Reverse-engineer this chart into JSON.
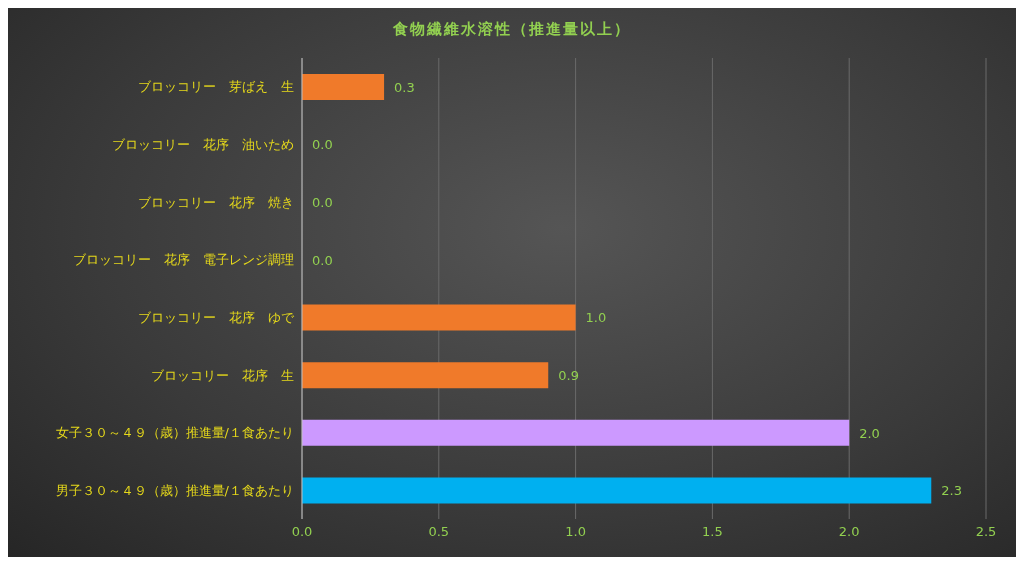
{
  "chart_data": {
    "type": "bar",
    "orientation": "horizontal",
    "title": "食物繊維水溶性（推進量以上）",
    "categories": [
      "ブロッコリー　芽ばえ　生",
      "ブロッコリー　花序　油いため",
      "ブロッコリー　花序　焼き",
      "ブロッコリー　花序　電子レンジ調理",
      "ブロッコリー　花序　ゆで",
      "ブロッコリー　花序　生",
      "女子３０～４９（歳）推進量/１食あたり",
      "男子３０～４９（歳）推進量/１食あたり"
    ],
    "values": [
      0.3,
      0,
      0,
      0,
      1.0,
      0.9,
      2.0,
      2.3
    ],
    "colors": [
      "#f07a2a",
      "#f07a2a",
      "#f07a2a",
      "#f07a2a",
      "#f07a2a",
      "#f07a2a",
      "#cc99ff",
      "#00b0f0"
    ],
    "value_labels": [
      "0.3",
      "0.0",
      "0.0",
      "0.0",
      "1.0",
      "0.9",
      "2.0",
      "2.3"
    ],
    "xlim": [
      0,
      2.5
    ],
    "xticks": [
      {
        "value": 0,
        "label": "0.0"
      },
      {
        "value": 0.5,
        "label": "0.5"
      },
      {
        "value": 1,
        "label": "1.0"
      },
      {
        "value": 1.5,
        "label": "1.5"
      },
      {
        "value": 2,
        "label": "2.0"
      },
      {
        "value": 2.5,
        "label": "2.5"
      }
    ],
    "grid": "x",
    "legend": false
  }
}
